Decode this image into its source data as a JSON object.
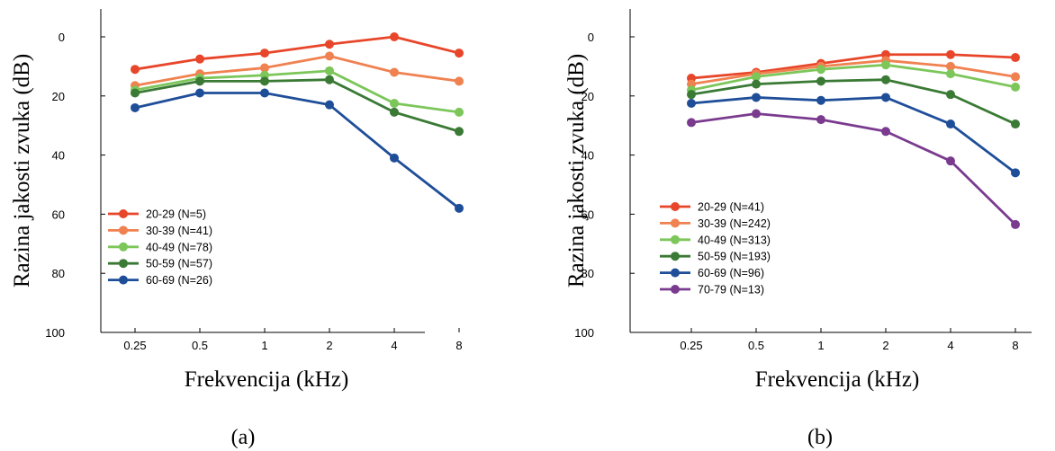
{
  "chart_data": [
    {
      "type": "line",
      "caption": "(a)",
      "xlabel": "Frekvencija (kHz)",
      "ylabel": "Razina jakosti zvuka (dB)",
      "x": [
        "0.25",
        "0.5",
        "1",
        "2",
        "4",
        "8"
      ],
      "yticks": [
        0,
        20,
        40,
        60,
        80,
        100
      ],
      "ylim": [
        -10,
        100
      ],
      "y_inverted": true,
      "legend_position": "bottom-left",
      "grid": false,
      "series": [
        {
          "name": "20-29 (N=5)",
          "color": "#e8462a",
          "values": [
            11,
            7.5,
            5.5,
            2.5,
            0,
            5.5
          ]
        },
        {
          "name": "30-39 (N=41)",
          "color": "#f08150",
          "values": [
            16.5,
            12.5,
            10.5,
            6.5,
            12,
            15
          ]
        },
        {
          "name": "40-49 (N=78)",
          "color": "#7cc65a",
          "values": [
            18,
            14,
            13,
            11.5,
            22.5,
            25.5
          ]
        },
        {
          "name": "50-59 (N=57)",
          "color": "#3a7a35",
          "values": [
            19,
            15,
            15,
            14.5,
            25.5,
            32
          ]
        },
        {
          "name": "60-69 (N=26)",
          "color": "#1f4e99",
          "values": [
            24,
            19,
            19,
            23,
            41,
            58
          ]
        }
      ]
    },
    {
      "type": "line",
      "caption": "(b)",
      "xlabel": "Frekvencija (kHz)",
      "ylabel": "Razina jakosti zvuka (dB)",
      "x": [
        "0.25",
        "0.5",
        "1",
        "2",
        "4",
        "8"
      ],
      "yticks": [
        0,
        20,
        40,
        60,
        80,
        100
      ],
      "ylim": [
        -10,
        100
      ],
      "y_inverted": true,
      "legend_position": "bottom-left",
      "grid": false,
      "series": [
        {
          "name": "20-29 (N=41)",
          "color": "#e8462a",
          "values": [
            14,
            12,
            9,
            6,
            6,
            7
          ]
        },
        {
          "name": "30-39 (N=242)",
          "color": "#f08150",
          "values": [
            16,
            12.5,
            10,
            8,
            10,
            13.5
          ]
        },
        {
          "name": "40-49 (N=313)",
          "color": "#7cc65a",
          "values": [
            18,
            13.5,
            11,
            9.5,
            12.5,
            17
          ]
        },
        {
          "name": "50-59 (N=193)",
          "color": "#3a7a35",
          "values": [
            19.5,
            16,
            15,
            14.5,
            19.5,
            29.5
          ]
        },
        {
          "name": "60-69 (N=96)",
          "color": "#1f4e99",
          "values": [
            22.5,
            20.5,
            21.5,
            20.5,
            29.5,
            46
          ]
        },
        {
          "name": "70-79 (N=13)",
          "color": "#7a3b8f",
          "values": [
            29,
            26,
            28,
            32,
            42,
            63.5
          ]
        }
      ]
    }
  ]
}
